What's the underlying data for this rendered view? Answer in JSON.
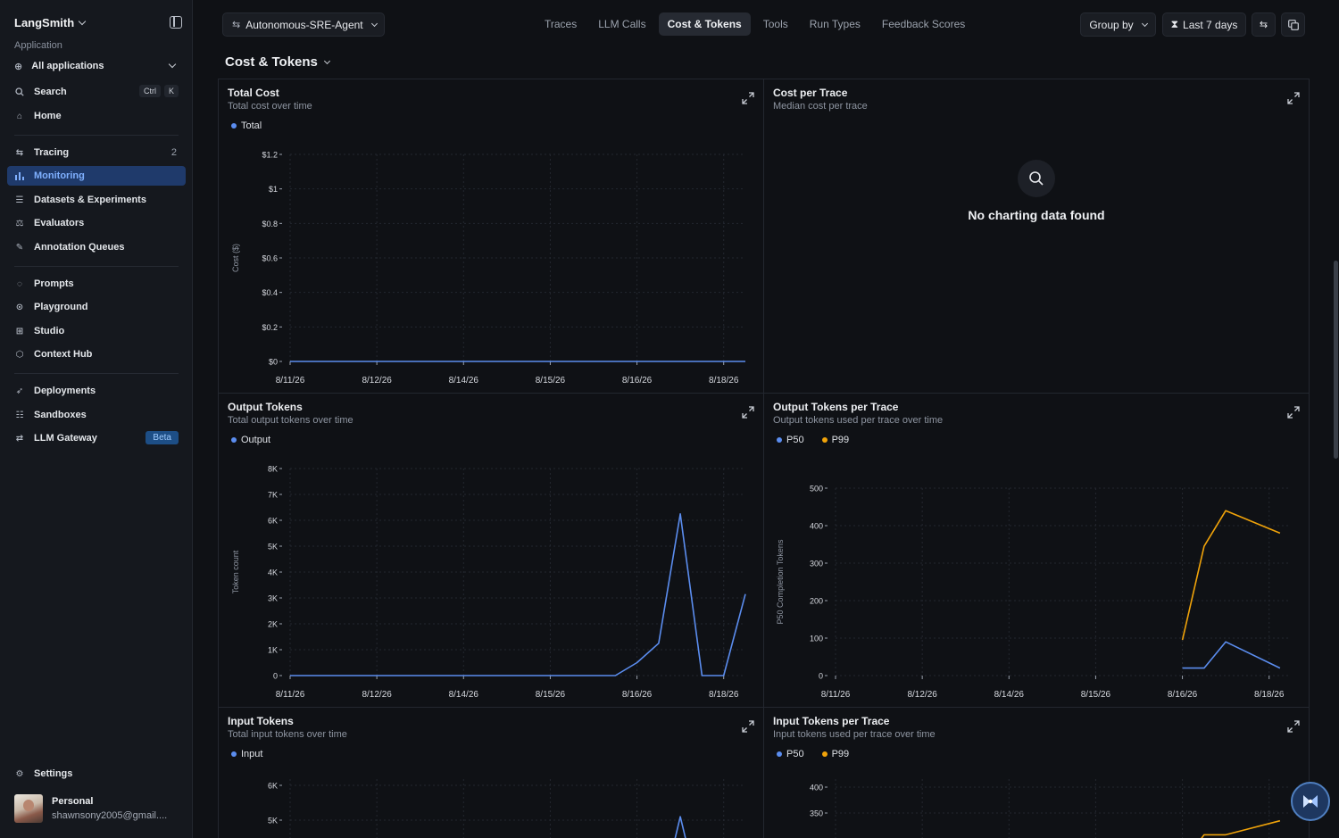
{
  "sidebar": {
    "brand": "LangSmith",
    "section_label": "Application",
    "app_select": "All applications",
    "search": {
      "label": "Search",
      "keys": [
        "Ctrl",
        "K"
      ]
    },
    "home": "Home",
    "tracing": {
      "label": "Tracing",
      "count": "2"
    },
    "monitoring": "Monitoring",
    "datasets": "Datasets & Experiments",
    "evaluators": "Evaluators",
    "annotation": "Annotation Queues",
    "prompts": "Prompts",
    "playground": "Playground",
    "studio": "Studio",
    "context_hub": "Context Hub",
    "deployments": "Deployments",
    "sandboxes": "Sandboxes",
    "llm_gateway": {
      "label": "LLM Gateway",
      "badge": "Beta"
    },
    "settings": "Settings",
    "user": {
      "name": "Personal",
      "email": "shawnsony2005@gmail...."
    }
  },
  "topbar": {
    "project": "Autonomous-SRE-Agent",
    "tabs": [
      "Traces",
      "LLM Calls",
      "Cost & Tokens",
      "Tools",
      "Run Types",
      "Feedback Scores"
    ],
    "active_tab": "Cost & Tokens",
    "group_by": "Group by",
    "range": "Last 7 days"
  },
  "section_title": "Cost & Tokens",
  "colors": {
    "blue": "#5b8def",
    "orange": "#f0a30a",
    "accent": "#7fb0ff"
  },
  "empty_message": "No charting data found",
  "chart_data": [
    {
      "type": "line",
      "title": "Total Cost",
      "subtitle": "Total cost over time",
      "ylabel": "Cost ($)",
      "yticks": [
        "$0",
        "$0.2",
        "$0.4",
        "$0.6",
        "$0.8",
        "$1",
        "$1.2"
      ],
      "ylim": [
        0,
        1.2
      ],
      "xlabels": [
        "8/11/26",
        "8/12/26",
        "8/14/26",
        "8/15/26",
        "8/16/26",
        "8/18/26"
      ],
      "xlim": [
        0,
        21
      ],
      "series": [
        {
          "name": "Total",
          "color": "#5b8def",
          "x": [
            0,
            21
          ],
          "y": [
            0,
            0
          ]
        }
      ]
    },
    {
      "type": "line",
      "title": "Cost per Trace",
      "subtitle": "Median cost per trace",
      "empty": true
    },
    {
      "type": "line",
      "title": "Output Tokens",
      "subtitle": "Total output tokens over time",
      "ylabel": "Token count",
      "yticks": [
        "0",
        "1K",
        "2K",
        "3K",
        "4K",
        "5K",
        "6K",
        "7K",
        "8K"
      ],
      "ylim": [
        0,
        8000
      ],
      "xlabels": [
        "8/11/26",
        "8/12/26",
        "8/14/26",
        "8/15/26",
        "8/16/26",
        "8/18/26"
      ],
      "xlim": [
        0,
        21
      ],
      "series": [
        {
          "name": "Output",
          "color": "#5b8def",
          "x": [
            0,
            15,
            16,
            17,
            18,
            19,
            20,
            21
          ],
          "y": [
            0,
            0,
            500,
            1250,
            6250,
            0,
            0,
            3150
          ]
        }
      ]
    },
    {
      "type": "line",
      "title": "Output Tokens per Trace",
      "subtitle": "Output tokens used per trace over time",
      "ylabel": "P50 Completion Tokens",
      "yticks": [
        "0",
        "100",
        "200",
        "300",
        "400",
        "500"
      ],
      "ylim": [
        0,
        500
      ],
      "xlabels": [
        "8/11/26",
        "8/12/26",
        "8/14/26",
        "8/15/26",
        "8/16/26",
        "8/18/26"
      ],
      "xlim": [
        0,
        21
      ],
      "series": [
        {
          "name": "P50",
          "color": "#5b8def",
          "x": [
            16,
            17,
            18,
            20.5
          ],
          "y": [
            20,
            20,
            90,
            20
          ]
        },
        {
          "name": "P99",
          "color": "#f0a30a",
          "x": [
            16,
            17,
            18,
            20.5
          ],
          "y": [
            95,
            345,
            440,
            380
          ]
        }
      ]
    },
    {
      "type": "line",
      "title": "Input Tokens",
      "subtitle": "Total input tokens over time",
      "ylabel": "",
      "yticks": [
        "5K",
        "6K"
      ],
      "ylim": [
        0,
        6000
      ],
      "xlim": [
        0,
        21
      ],
      "series": [
        {
          "name": "Input",
          "color": "#5b8def",
          "x": [
            17.5,
            18,
            18.5
          ],
          "y": [
            3800,
            5100,
            3800
          ]
        }
      ]
    },
    {
      "type": "line",
      "title": "Input Tokens per Trace",
      "subtitle": "Input tokens used per trace over time",
      "ylabel": "",
      "yticks": [
        "300",
        "350",
        "400"
      ],
      "ylim": [
        0,
        400
      ],
      "xlim": [
        0,
        21
      ],
      "series": [
        {
          "name": "P50",
          "color": "#5b8def",
          "x": [],
          "y": []
        },
        {
          "name": "P99",
          "color": "#f0a30a",
          "x": [
            16.5,
            17,
            18,
            20.5
          ],
          "y": [
            280,
            308,
            308,
            335
          ]
        }
      ]
    }
  ]
}
